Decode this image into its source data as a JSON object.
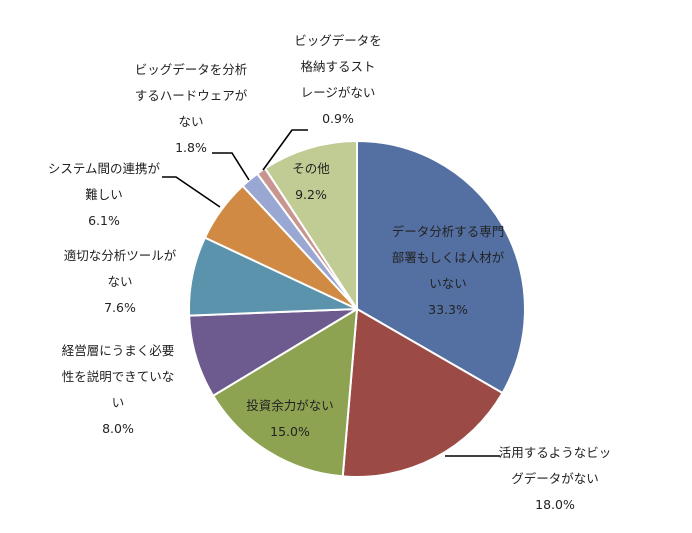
{
  "chart_data": {
    "type": "pie",
    "title": "",
    "start_angle_deg": 90,
    "direction": "clockwise",
    "slices": [
      {
        "label": [
          "データ分析する専門",
          "部署もしくは人材が",
          "いない"
        ],
        "value": 33.3,
        "value_label": "33.3%",
        "color": "#5470a3"
      },
      {
        "label": [
          "活用するようなビッ",
          "グデータがない"
        ],
        "value": 18.0,
        "value_label": "18.0%",
        "color": "#9c4a45"
      },
      {
        "label": [
          "投資余力がない"
        ],
        "value": 15.0,
        "value_label": "15.0%",
        "color": "#8ea352"
      },
      {
        "label": [
          "経営層にうまく必要",
          "性を説明できていな",
          "い"
        ],
        "value": 8.0,
        "value_label": "8.0%",
        "color": "#6d5a8e"
      },
      {
        "label": [
          "適切な分析ツールが",
          "ない"
        ],
        "value": 7.6,
        "value_label": "7.6%",
        "color": "#5a93ab"
      },
      {
        "label": [
          "システム間の連携が",
          "難しい"
        ],
        "value": 6.1,
        "value_label": "6.1%",
        "color": "#d08a43"
      },
      {
        "label": [
          "ビッグデータを分析",
          "するハードウェアが",
          "ない"
        ],
        "value": 1.8,
        "value_label": "1.8%",
        "color": "#9aa7d3"
      },
      {
        "label": [
          "ビッグデータを",
          "格納するスト",
          "レージがない"
        ],
        "value": 0.9,
        "value_label": "0.9%",
        "color": "#c99590"
      },
      {
        "label": [
          "その他"
        ],
        "value": 9.2,
        "value_label": "9.2%",
        "color": "#c1cb94"
      }
    ]
  }
}
